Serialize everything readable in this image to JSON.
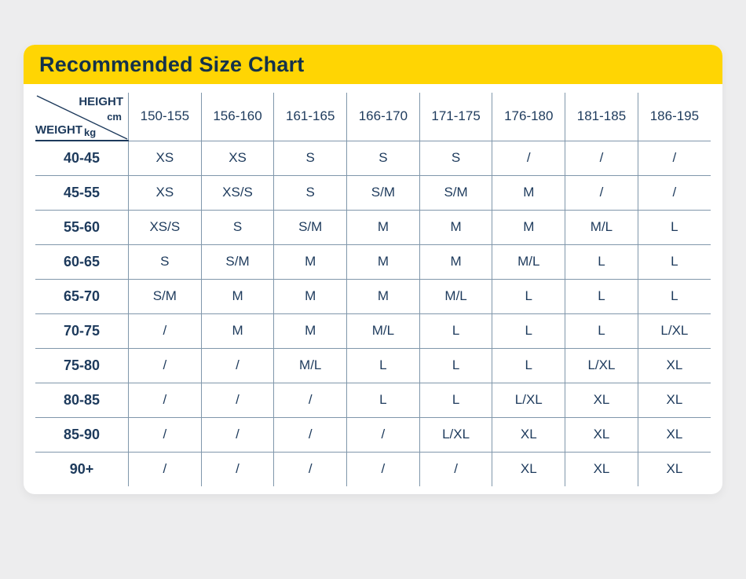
{
  "header": {
    "title": "Recommended Size Chart"
  },
  "chart_data": {
    "type": "table",
    "title": "Recommended Size Chart",
    "column_axis": {
      "label": "HEIGHT",
      "unit": "cm"
    },
    "row_axis": {
      "label": "WEIGHT",
      "unit": "kg"
    },
    "columns": [
      "150-155",
      "156-160",
      "161-165",
      "166-170",
      "171-175",
      "176-180",
      "181-185",
      "186-195"
    ],
    "rows": [
      {
        "weight": "40-45",
        "sizes": [
          "XS",
          "XS",
          "S",
          "S",
          "S",
          "/",
          "/",
          "/"
        ]
      },
      {
        "weight": "45-55",
        "sizes": [
          "XS",
          "XS/S",
          "S",
          "S/M",
          "S/M",
          "M",
          "/",
          "/"
        ]
      },
      {
        "weight": "55-60",
        "sizes": [
          "XS/S",
          "S",
          "S/M",
          "M",
          "M",
          "M",
          "M/L",
          "L"
        ]
      },
      {
        "weight": "60-65",
        "sizes": [
          "S",
          "S/M",
          "M",
          "M",
          "M",
          "M/L",
          "L",
          "L"
        ]
      },
      {
        "weight": "65-70",
        "sizes": [
          "S/M",
          "M",
          "M",
          "M",
          "M/L",
          "L",
          "L",
          "L"
        ]
      },
      {
        "weight": "70-75",
        "sizes": [
          "/",
          "M",
          "M",
          "M/L",
          "L",
          "L",
          "L",
          "L/XL"
        ]
      },
      {
        "weight": "75-80",
        "sizes": [
          "/",
          "/",
          "M/L",
          "L",
          "L",
          "L",
          "L/XL",
          "XL"
        ]
      },
      {
        "weight": "80-85",
        "sizes": [
          "/",
          "/",
          "/",
          "L",
          "L",
          "L/XL",
          "XL",
          "XL"
        ]
      },
      {
        "weight": "85-90",
        "sizes": [
          "/",
          "/",
          "/",
          "/",
          "L/XL",
          "XL",
          "XL",
          "XL"
        ]
      },
      {
        "weight": "90+",
        "sizes": [
          "/",
          "/",
          "/",
          "/",
          "/",
          "XL",
          "XL",
          "XL"
        ]
      }
    ]
  },
  "colors": {
    "accent_yellow": "#FFD503",
    "text_navy": "#1D3A5C",
    "title_navy": "#14324A",
    "grid_line": "#8097AB",
    "page_background": "#EDEDEE",
    "card_background": "#FFFFFF"
  }
}
